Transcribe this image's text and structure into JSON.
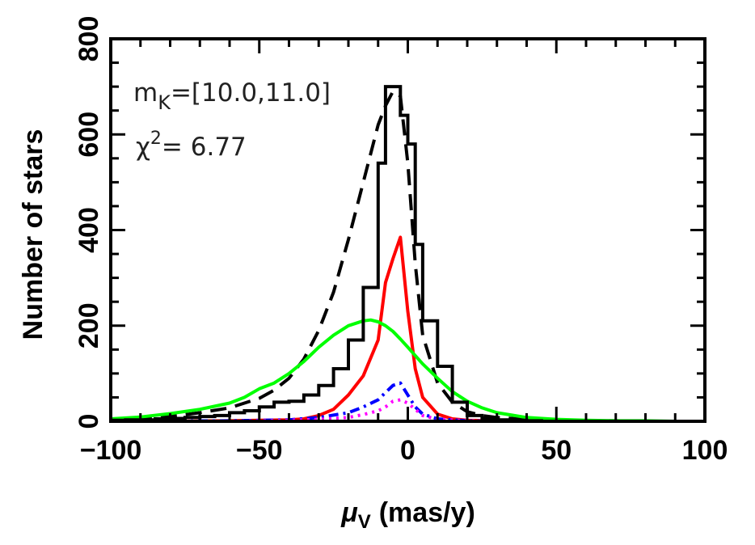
{
  "chart_data": {
    "type": "line",
    "title": "",
    "xlabel": "μ",
    "xlabel_sub": "V",
    "xlabel_unit": "(mas/y)",
    "ylabel": "Number of stars",
    "xlim": [
      -100,
      100
    ],
    "ylim": [
      0,
      800
    ],
    "x_ticks": [
      "−100",
      "−50",
      "0",
      "50",
      "100"
    ],
    "x_tick_values": [
      -100,
      -50,
      0,
      50,
      100
    ],
    "y_ticks": [
      "0",
      "200",
      "400",
      "600",
      "800"
    ],
    "y_tick_values": [
      0,
      200,
      400,
      600,
      800
    ],
    "grid": false,
    "annotations": {
      "mag_prefix": "m",
      "mag_sub": "K",
      "mag_range": "=[10.0,11.0]",
      "chi_prefix": "χ",
      "chi_sup": "2",
      "chi_value": "=  6.77"
    },
    "histogram": {
      "color": "#000000",
      "edges": [
        -100,
        -95,
        -90,
        -85,
        -80,
        -75,
        -70,
        -65,
        -60,
        -55,
        -50,
        -45,
        -40,
        -35,
        -30,
        -25,
        -20,
        -15,
        -10,
        -7.5,
        -5,
        -2.5,
        0,
        2.5,
        5,
        10,
        15,
        20,
        25,
        30,
        35,
        40,
        45,
        50,
        55,
        60,
        65,
        70,
        75,
        80,
        85,
        90,
        95,
        100
      ],
      "counts": [
        2,
        3,
        3,
        5,
        6,
        8,
        10,
        12,
        18,
        22,
        30,
        40,
        42,
        55,
        75,
        110,
        170,
        280,
        540,
        700,
        700,
        640,
        580,
        370,
        210,
        115,
        40,
        12,
        6,
        3,
        2,
        1,
        0,
        0,
        0,
        0,
        0,
        0,
        0,
        0,
        0,
        0,
        0
      ]
    },
    "series": [
      {
        "color": "#000000",
        "style": "dashed",
        "x": [
          -100,
          -90,
          -80,
          -70,
          -60,
          -50,
          -45,
          -40,
          -35,
          -30,
          -25,
          -20,
          -15,
          -10,
          -7.5,
          -5,
          -2.5,
          0,
          2.5,
          5,
          10,
          15,
          20,
          25,
          30,
          40,
          50,
          60,
          70,
          80,
          90,
          100
        ],
        "y": [
          2,
          5,
          10,
          18,
          28,
          48,
          65,
          90,
          130,
          190,
          270,
          380,
          500,
          620,
          660,
          690,
          680,
          540,
          330,
          180,
          80,
          40,
          20,
          12,
          8,
          4,
          2,
          1,
          1,
          0,
          0,
          0
        ]
      },
      {
        "color": "#ff0000",
        "style": "solid",
        "x": [
          -100,
          -80,
          -60,
          -50,
          -40,
          -35,
          -30,
          -25,
          -20,
          -15,
          -10,
          -7.5,
          -5,
          -2.5,
          0,
          2.5,
          5,
          10,
          15,
          20,
          30,
          40,
          50,
          60,
          70,
          80,
          90,
          100
        ],
        "y": [
          0,
          0,
          1,
          2,
          3,
          5,
          12,
          25,
          55,
          95,
          170,
          290,
          340,
          385,
          230,
          110,
          50,
          15,
          5,
          2,
          1,
          0,
          0,
          0,
          0,
          0,
          0,
          0
        ]
      },
      {
        "color": "#00ff00",
        "style": "solid",
        "x": [
          -100,
          -90,
          -80,
          -70,
          -60,
          -55,
          -50,
          -45,
          -40,
          -35,
          -30,
          -25,
          -20,
          -15,
          -12.5,
          -10,
          -7.5,
          -5,
          -2.5,
          0,
          5,
          10,
          15,
          20,
          25,
          30,
          40,
          50,
          60,
          70,
          80,
          90,
          100
        ],
        "y": [
          5,
          9,
          16,
          25,
          38,
          50,
          68,
          80,
          100,
          125,
          155,
          180,
          200,
          210,
          212,
          208,
          200,
          188,
          172,
          155,
          120,
          90,
          62,
          42,
          28,
          18,
          8,
          4,
          2,
          1,
          1,
          0,
          0
        ]
      },
      {
        "color": "#0000ff",
        "style": "dashdot",
        "x": [
          -100,
          -60,
          -40,
          -30,
          -20,
          -15,
          -10,
          -7.5,
          -5,
          -2.5,
          0,
          2.5,
          5,
          10,
          20,
          30,
          50,
          100
        ],
        "y": [
          0,
          1,
          3,
          8,
          18,
          30,
          45,
          60,
          75,
          80,
          55,
          30,
          15,
          5,
          1,
          0,
          0,
          0
        ]
      },
      {
        "color": "#ff00ff",
        "style": "dotted",
        "x": [
          -100,
          -60,
          -40,
          -30,
          -20,
          -15,
          -10,
          -7.5,
          -5,
          -2.5,
          0,
          2.5,
          5,
          10,
          20,
          30,
          50,
          100
        ],
        "y": [
          0,
          0,
          2,
          4,
          8,
          14,
          22,
          30,
          42,
          45,
          38,
          25,
          12,
          4,
          1,
          0,
          0,
          0
        ]
      }
    ]
  }
}
